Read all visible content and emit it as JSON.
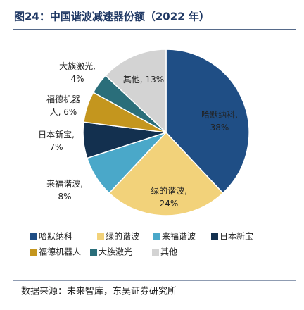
{
  "chart_data": {
    "type": "pie",
    "title": "图24：中国谐波减速器份额（2022 年）",
    "categories": [
      "哈默纳科",
      "绿的谐波",
      "来福谐波",
      "日本新宝",
      "福德机器人",
      "大族激光",
      "其他"
    ],
    "values": [
      38,
      24,
      8,
      7,
      6,
      4,
      13
    ],
    "value_labels": [
      "哈默纳科,\n38%",
      "绿的谐波,\n24%",
      "来福谐波,\n8%",
      "日本新宝,\n7%",
      "福德机器\n人, 6%",
      "大族激光,\n4%",
      "其他, 13%"
    ],
    "colors": [
      "#1f4e85",
      "#f2d27a",
      "#4aa8c9",
      "#13304f",
      "#c4961e",
      "#2a6e7a",
      "#d3d3d3"
    ],
    "source": "数据来源：未来智库，东吴证券研究所"
  }
}
